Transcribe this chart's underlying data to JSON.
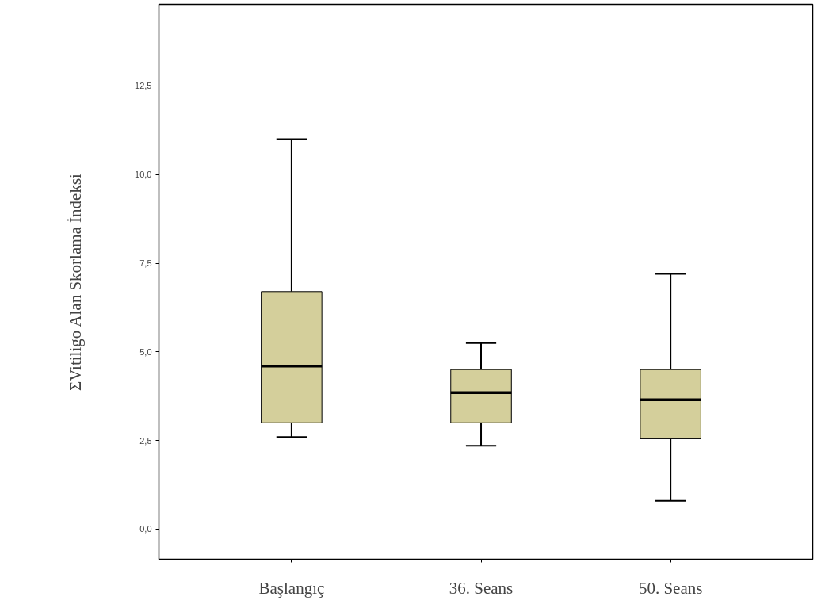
{
  "chart_data": {
    "type": "box",
    "ylabel": "ΣVitiligo Alan Skorlama İndeksi",
    "categories": [
      "Başlangıç",
      "36. Seans",
      "50. Seans"
    ],
    "boxes": [
      {
        "low": 2.6,
        "q1": 3.0,
        "median": 4.6,
        "q3": 6.7,
        "high": 11.0
      },
      {
        "low": 2.35,
        "q1": 3.0,
        "median": 3.85,
        "q3": 4.5,
        "high": 5.25
      },
      {
        "low": 0.8,
        "q1": 2.55,
        "median": 3.65,
        "q3": 4.5,
        "high": 7.2
      }
    ],
    "color": "#d4cf9b",
    "ylim": [
      -0.85,
      14.8
    ],
    "yticks": [
      {
        "value": 0,
        "label": "0,0"
      },
      {
        "value": 2.5,
        "label": "2,5"
      },
      {
        "value": 5,
        "label": "5,0"
      },
      {
        "value": 7.5,
        "label": "7,5"
      },
      {
        "value": 10,
        "label": "10,0"
      },
      {
        "value": 12.5,
        "label": "12,5"
      }
    ],
    "grid": false
  }
}
